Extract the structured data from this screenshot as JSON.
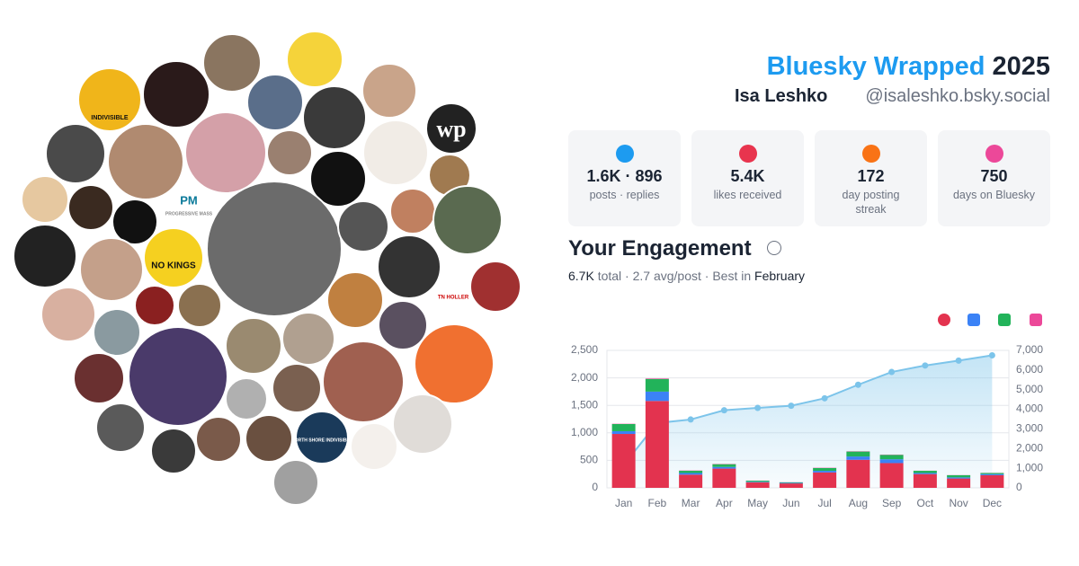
{
  "header": {
    "title": "Bluesky Wrapped",
    "year": "2025",
    "name": "Isa Leshko",
    "handle": "@isaleshko.bsky.social"
  },
  "stats": [
    {
      "value": "1.6K · 896",
      "label": "posts · replies",
      "color": "#1d9bf0"
    },
    {
      "value": "5.4K",
      "label": "likes received",
      "color": "#e8344e"
    },
    {
      "value": "172",
      "label": "day posting streak",
      "color": "#f97316"
    },
    {
      "value": "750",
      "label": "days on Bluesky",
      "color": "#ec4899"
    }
  ],
  "engagement": {
    "title": "Your Engagement",
    "summary": [
      "6.7K",
      " total · 2.7 avg/post · Best in ",
      "February"
    ]
  },
  "avatar_texts": [
    "INDIVISIBLE",
    "NO KINGS",
    "PM",
    "PROGRESSIVE MASS",
    "NORTH SHORE INDIVISIBLE",
    "TN HOLLER",
    "wp"
  ],
  "chart_data": {
    "type": "bar",
    "categories": [
      "Jan",
      "Feb",
      "Mar",
      "Apr",
      "May",
      "Jun",
      "Jul",
      "Aug",
      "Sep",
      "Oct",
      "Nov",
      "Dec"
    ],
    "series": [
      {
        "color": "#e3334f",
        "values": [
          980,
          1580,
          240,
          350,
          100,
          80,
          280,
          510,
          450,
          250,
          170,
          230
        ]
      },
      {
        "color": "#3b82f6",
        "values": [
          50,
          170,
          30,
          30,
          10,
          10,
          30,
          60,
          70,
          20,
          20,
          20
        ]
      },
      {
        "color": "#22b35a",
        "values": [
          130,
          230,
          40,
          50,
          20,
          10,
          50,
          90,
          80,
          40,
          40,
          20
        ]
      },
      {
        "color": "#ec4899",
        "values": [
          5,
          10,
          5,
          5,
          2,
          2,
          5,
          5,
          5,
          2,
          2,
          2
        ]
      },
      {
        "type": "line",
        "axis": "y2",
        "color": "#7cc4ea",
        "values": [
          1170,
          3300,
          3480,
          3950,
          4070,
          4180,
          4560,
          5250,
          5900,
          6230,
          6480,
          6750
        ]
      }
    ],
    "ylim": [
      0,
      2500
    ],
    "yticks": [
      0,
      500,
      {
        "value": 1000,
        "label": "1,000"
      },
      {
        "value": 1500,
        "label": "1,500"
      },
      {
        "value": 2000,
        "label": "2,000"
      },
      {
        "value": 2500,
        "label": "2,500"
      }
    ],
    "y2lim": [
      0,
      7000
    ],
    "y2ticks": [
      0,
      {
        "value": 1000,
        "label": "1,000"
      },
      {
        "value": 2000,
        "label": "2,000"
      },
      {
        "value": 3000,
        "label": "3,000"
      },
      {
        "value": 4000,
        "label": "4,000"
      },
      {
        "value": 5000,
        "label": "5,000"
      },
      {
        "value": 6000,
        "label": "6,000"
      },
      {
        "value": 7000,
        "label": "7,000"
      }
    ],
    "grid": true
  }
}
